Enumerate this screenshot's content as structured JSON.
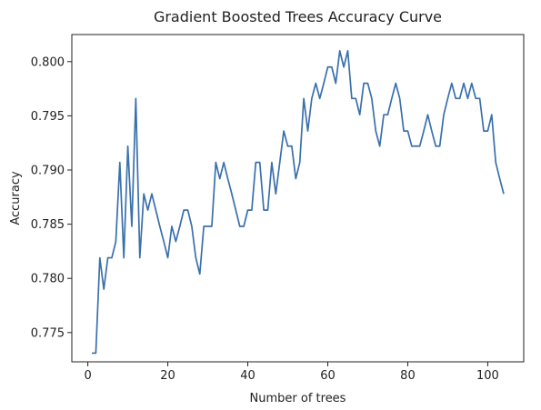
{
  "chart_data": {
    "type": "line",
    "title": "Gradient Boosted Trees Accuracy Curve",
    "xlabel": "Number of trees",
    "ylabel": "Accuracy",
    "xlim": [
      -4,
      109
    ],
    "ylim": [
      0.7723,
      0.8025
    ],
    "xticks": [
      0,
      20,
      40,
      60,
      80,
      100
    ],
    "xtick_labels": [
      "0",
      "20",
      "40",
      "60",
      "80",
      "100"
    ],
    "yticks": [
      0.775,
      0.78,
      0.785,
      0.79,
      0.795,
      0.8
    ],
    "ytick_labels": [
      "0.775",
      "0.780",
      "0.785",
      "0.790",
      "0.795",
      "0.800"
    ],
    "grid": false,
    "legend": "none",
    "line_color": "#3a70ac",
    "series": [
      {
        "x": [
          1,
          2,
          3,
          4,
          5,
          6,
          7,
          8,
          9,
          10,
          11,
          12,
          13,
          14,
          15,
          16,
          17,
          18,
          19,
          20,
          21,
          22,
          23,
          24,
          25,
          26,
          27,
          28,
          29,
          30,
          31,
          32,
          33,
          34,
          35,
          36,
          37,
          38,
          39,
          40,
          41,
          42,
          43,
          44,
          45,
          46,
          47,
          48,
          49,
          50,
          51,
          52,
          53,
          54,
          55,
          56,
          57,
          58,
          59,
          60,
          61,
          62,
          63,
          64,
          65,
          66,
          67,
          68,
          69,
          70,
          71,
          72,
          73,
          74,
          75,
          76,
          77,
          78,
          79,
          80,
          81,
          82,
          83,
          84,
          85,
          86,
          87,
          88,
          89,
          90,
          91,
          92,
          93,
          94,
          95,
          96,
          97,
          98,
          99,
          100,
          101,
          102,
          103,
          104
        ],
        "y": [
          0.7731,
          0.7731,
          0.7819,
          0.779,
          0.7819,
          0.7819,
          0.7834,
          0.7907,
          0.7819,
          0.7922,
          0.7848,
          0.7966,
          0.7819,
          0.7878,
          0.7863,
          0.7878,
          0.7863,
          0.7848,
          0.7834,
          0.7819,
          0.7848,
          0.7834,
          0.7848,
          0.7863,
          0.7863,
          0.7848,
          0.7819,
          0.7804,
          0.7848,
          0.7848,
          0.7848,
          0.7907,
          0.7892,
          0.7907,
          0.7892,
          0.7878,
          0.7863,
          0.7848,
          0.7848,
          0.7863,
          0.7863,
          0.7907,
          0.7907,
          0.7863,
          0.7863,
          0.7907,
          0.7878,
          0.7907,
          0.7936,
          0.7922,
          0.7922,
          0.7892,
          0.7907,
          0.7966,
          0.7936,
          0.7966,
          0.798,
          0.7966,
          0.798,
          0.7995,
          0.7995,
          0.798,
          0.801,
          0.7995,
          0.801,
          0.7966,
          0.7966,
          0.7951,
          0.798,
          0.798,
          0.7966,
          0.7936,
          0.7922,
          0.7951,
          0.7951,
          0.7966,
          0.798,
          0.7966,
          0.7936,
          0.7936,
          0.7922,
          0.7922,
          0.7922,
          0.7936,
          0.7951,
          0.7936,
          0.7922,
          0.7922,
          0.7951,
          0.7966,
          0.798,
          0.7966,
          0.7966,
          0.798,
          0.7966,
          0.798,
          0.7966,
          0.7966,
          0.7936,
          0.7936,
          0.7951,
          0.7907,
          0.7892,
          0.7878
        ]
      }
    ]
  }
}
